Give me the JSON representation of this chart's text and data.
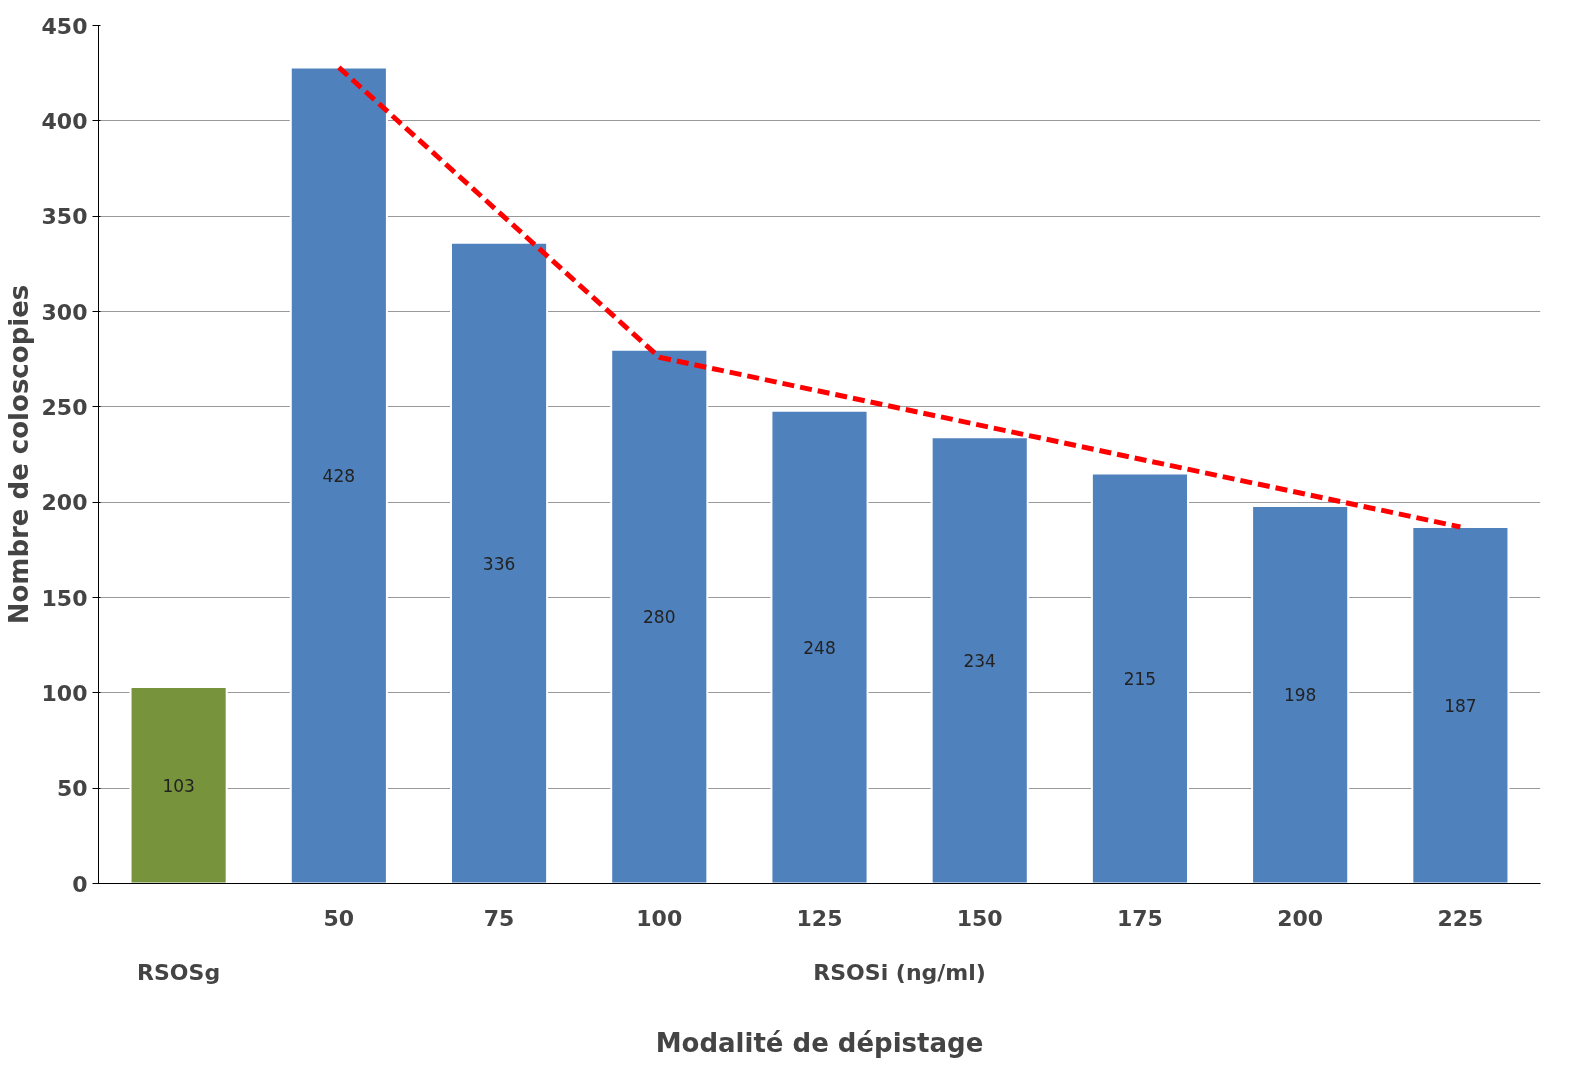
{
  "chart_data": {
    "type": "bar",
    "xlabel": "Modalité de dépistage",
    "ylabel": "Nombre de coloscopies",
    "categories": [
      null,
      "50",
      "75",
      "100",
      "125",
      "150",
      "175",
      "200",
      "225"
    ],
    "series": [
      {
        "colors": [
          "#77933c",
          "#4f81bd",
          "#4f81bd",
          "#4f81bd",
          "#4f81bd",
          "#4f81bd",
          "#4f81bd",
          "#4f81bd",
          "#4f81bd"
        ],
        "values": [
          103,
          428,
          336,
          280,
          248,
          234,
          215,
          198,
          187
        ],
        "data_labels": true
      },
      {
        "type": "line",
        "color": "#ff0000",
        "line_style": "dashed",
        "x": [
          "50",
          "100",
          "225"
        ],
        "values": [
          428,
          276,
          187
        ]
      }
    ],
    "annotations": [
      "RSOSg",
      "RSOSi (ng/ml)"
    ],
    "ylim": [
      0,
      450
    ],
    "yticks": [
      0,
      50,
      100,
      150,
      200,
      250,
      300,
      350,
      400,
      450
    ],
    "grid": "y"
  }
}
